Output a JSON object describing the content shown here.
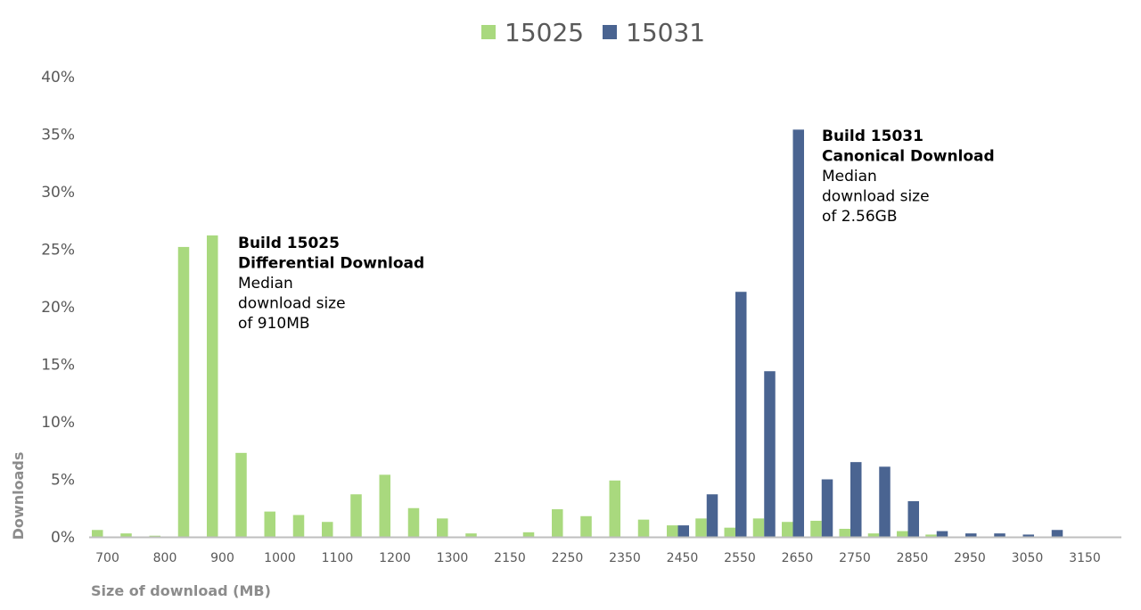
{
  "chart_data": {
    "type": "bar",
    "title": "",
    "xlabel": "Size of download (MB)",
    "ylabel": "Downloads",
    "ylim": [
      0,
      40
    ],
    "y_unit": "%",
    "y_ticks": [
      "0%",
      "5%",
      "10%",
      "15%",
      "20%",
      "25%",
      "30%",
      "35%",
      "40%"
    ],
    "grid": false,
    "legend": "top-center",
    "categories": [
      "700",
      "750",
      "800",
      "850",
      "900",
      "950",
      "1000",
      "1050",
      "1100",
      "1150",
      "1200",
      "1250",
      "1300",
      "1350",
      "2150",
      "2200",
      "2250",
      "2300",
      "2350",
      "2400",
      "2450",
      "2500",
      "2550",
      "2600",
      "2650",
      "2700",
      "2750",
      "2800",
      "2850",
      "2900",
      "2950",
      "3000",
      "3050",
      "3100",
      "3150"
    ],
    "x_tick_labels": [
      "700",
      "800",
      "900",
      "1000",
      "1100",
      "1200",
      "1300",
      "2150",
      "2250",
      "2350",
      "2450",
      "2550",
      "2650",
      "2750",
      "2850",
      "2950",
      "3050",
      "3150"
    ],
    "series": [
      {
        "name": "15025",
        "color": "#A9D97E",
        "values": [
          0.6,
          0.3,
          0.1,
          25.2,
          26.2,
          7.3,
          2.2,
          1.9,
          1.3,
          3.7,
          5.4,
          2.5,
          1.6,
          0.3,
          0,
          0.4,
          2.4,
          1.8,
          4.9,
          1.5,
          1.0,
          1.6,
          0.8,
          1.6,
          1.3,
          1.4,
          0.7,
          0.3,
          0.5,
          0.2,
          0,
          0,
          0,
          0,
          0
        ]
      },
      {
        "name": "15031",
        "color": "#4A6491",
        "values": [
          0,
          0,
          0,
          0,
          0,
          0,
          0,
          0,
          0,
          0,
          0,
          0,
          0,
          0,
          0,
          0,
          0,
          0,
          0,
          0,
          1.0,
          3.7,
          21.3,
          14.4,
          35.4,
          5.0,
          6.5,
          6.1,
          3.1,
          0.5,
          0.3,
          0.3,
          0.2,
          0.6,
          0
        ]
      }
    ],
    "annotations": [
      {
        "anchor_category": "900",
        "lines": [
          {
            "text": "Build 15025",
            "bold": true
          },
          {
            "text": "Differential Download",
            "bold": true
          },
          {
            "text": "Median",
            "bold": false
          },
          {
            "text": "download size",
            "bold": false
          },
          {
            "text": "of 910MB",
            "bold": false
          }
        ]
      },
      {
        "anchor_category": "2650",
        "lines": [
          {
            "text": "Build 15031",
            "bold": true
          },
          {
            "text": "Canonical Download",
            "bold": true
          },
          {
            "text": "Median",
            "bold": false
          },
          {
            "text": "download size",
            "bold": false
          },
          {
            "text": "of 2.56GB",
            "bold": false
          }
        ]
      }
    ]
  }
}
